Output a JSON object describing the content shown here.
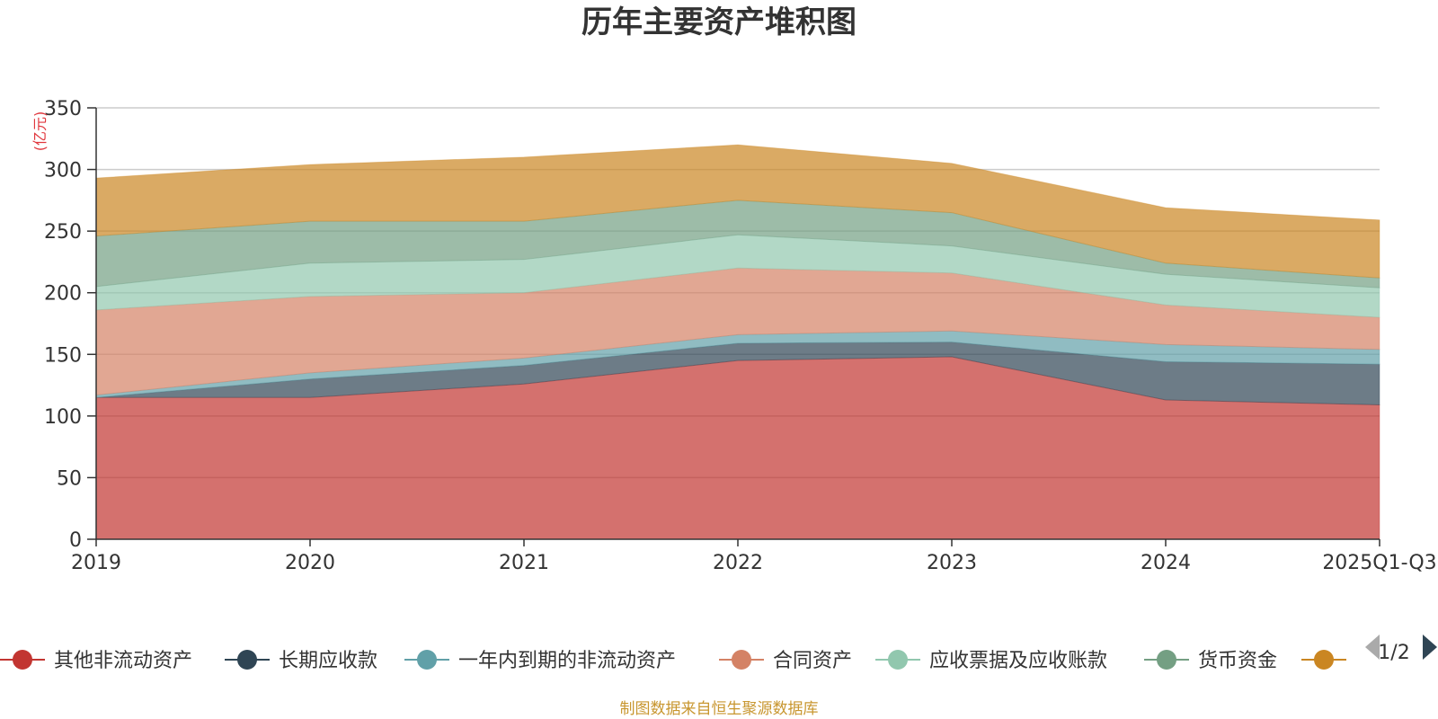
{
  "chart_data": {
    "type": "area",
    "stacked": true,
    "title": "历年主要资产堆积图",
    "unit_label": "(亿元)",
    "categories": [
      "2019",
      "2020",
      "2021",
      "2022",
      "2023",
      "2024",
      "2025Q1-Q3"
    ],
    "ylim": [
      0,
      350
    ],
    "yticks": [
      0,
      50,
      100,
      150,
      200,
      250,
      300,
      350
    ],
    "grid": true,
    "series": [
      {
        "name": "其他非流动资产",
        "color": "#c23531",
        "values": [
          115,
          115,
          126,
          145,
          148,
          113,
          109
        ]
      },
      {
        "name": "长期应收款",
        "color": "#2f4554",
        "values": [
          0,
          15,
          15,
          14,
          12,
          31,
          33
        ]
      },
      {
        "name": "一年内到期的非流动资产",
        "color": "#61a0a8",
        "values": [
          2,
          5,
          6,
          7,
          9,
          14,
          12
        ]
      },
      {
        "name": "合同资产",
        "color": "#d48265",
        "values": [
          69,
          62,
          53,
          54,
          47,
          32,
          26
        ]
      },
      {
        "name": "应收票据及应收账款",
        "color": "#91c7ae",
        "values": [
          19,
          27,
          27,
          27,
          22,
          25,
          24
        ]
      },
      {
        "name": "货币资金",
        "color": "#749f83",
        "values": [
          41,
          34,
          31,
          28,
          27,
          9,
          8
        ]
      },
      {
        "name": "",
        "color": "#ca8622",
        "values": [
          47,
          46,
          52,
          45,
          40,
          45,
          47
        ]
      }
    ]
  },
  "legend": {
    "page_label": "1/2"
  },
  "source_note": "制图数据来自恒生聚源数据库",
  "colors": {
    "text": "#333333",
    "grid": "#cccccc",
    "axis": "#333333",
    "unit": "#e0363c",
    "source": "#c8962f",
    "pager_inactive": "#aaaaaa",
    "pager_active": "#2f4554"
  }
}
